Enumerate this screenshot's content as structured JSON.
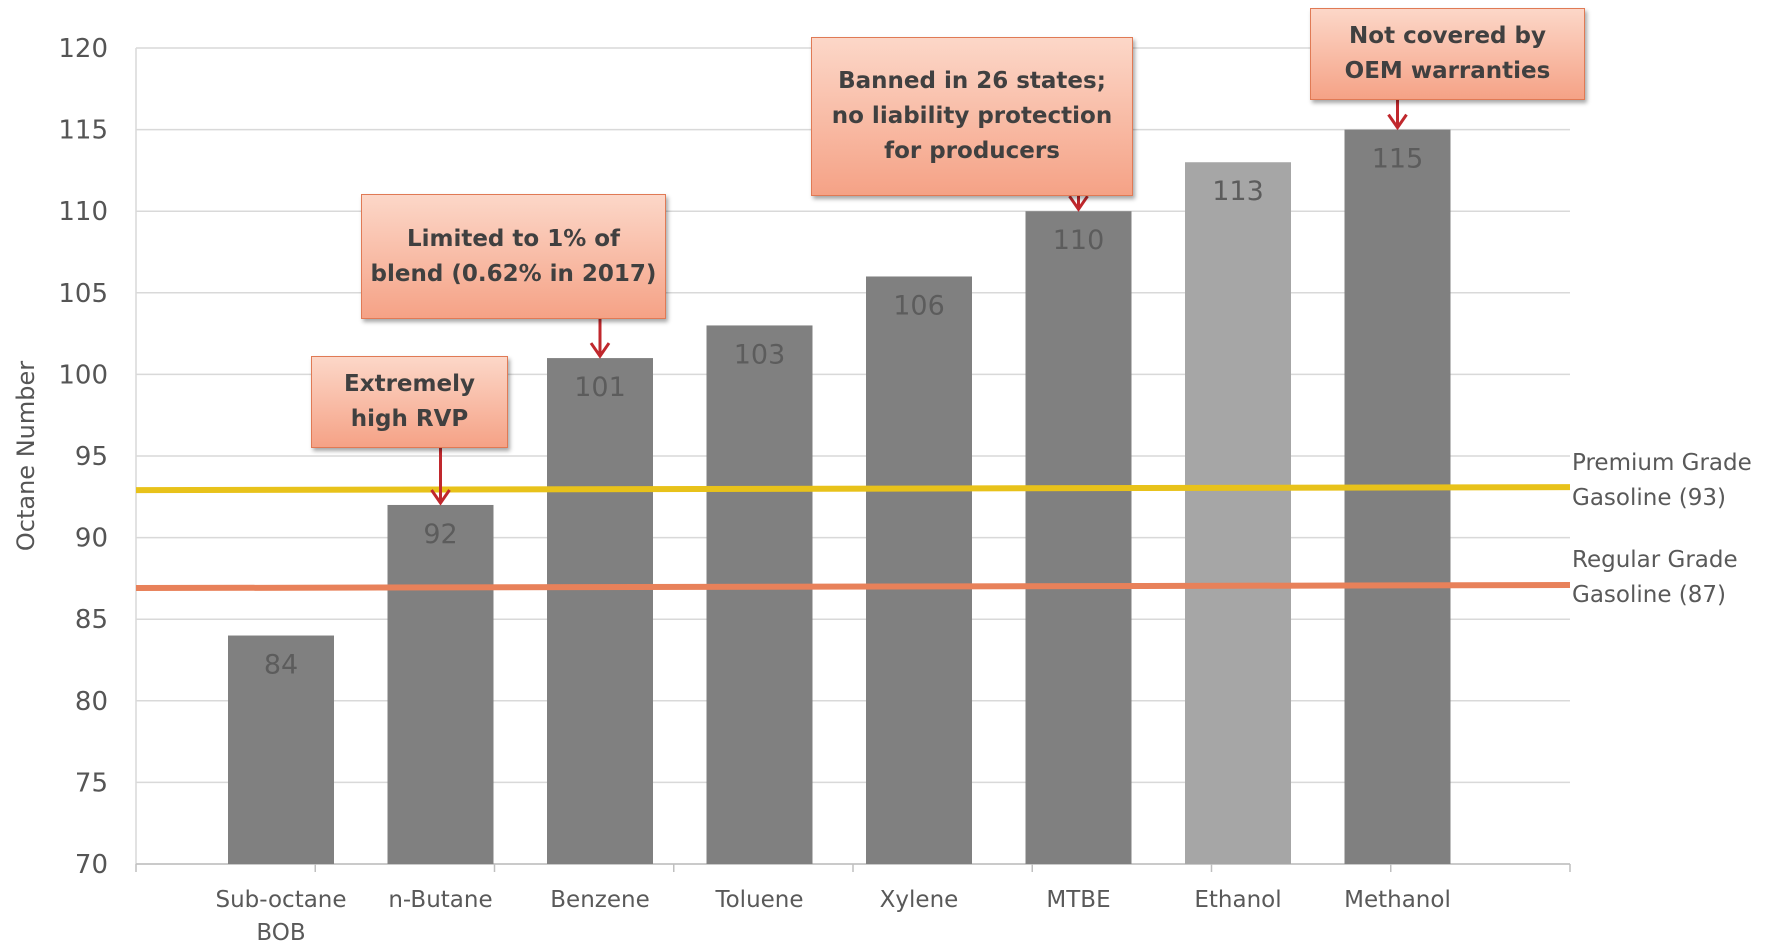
{
  "chart_data": {
    "type": "bar",
    "title": "",
    "ylabel": "Octane Number",
    "xlabel": "",
    "ylim": [
      70,
      120
    ],
    "yticks": [
      70,
      75,
      80,
      85,
      90,
      95,
      100,
      105,
      110,
      115,
      120
    ],
    "categories": [
      "Sub-octane BOB",
      "n-Butane",
      "Benzene",
      "Toluene",
      "Xylene",
      "MTBE",
      "Ethanol",
      "Methanol"
    ],
    "values": [
      84,
      92,
      101,
      103,
      106,
      110,
      113,
      115
    ],
    "bar_colors": [
      "#808080",
      "#808080",
      "#808080",
      "#808080",
      "#808080",
      "#808080",
      "#a6a6a6",
      "#808080"
    ],
    "grid": true,
    "reference_lines": [
      {
        "label": "Premium Grade Gasoline (93)",
        "value": 93,
        "color": "#e8c21a"
      },
      {
        "label": "Regular Grade Gasoline (87)",
        "value": 87,
        "color": "#e8815a"
      }
    ],
    "annotations": [
      {
        "category": "n-Butane",
        "text": "Extremely high RVP"
      },
      {
        "category": "Benzene",
        "text": "Limited to 1% of blend (0.62% in 2017)"
      },
      {
        "category": "MTBE",
        "text": "Banned in 26 states; no liability protection for producers"
      },
      {
        "category": "Methanol",
        "text": "Not covered by OEM warranties"
      }
    ],
    "annotation_color": "#c0282d"
  }
}
